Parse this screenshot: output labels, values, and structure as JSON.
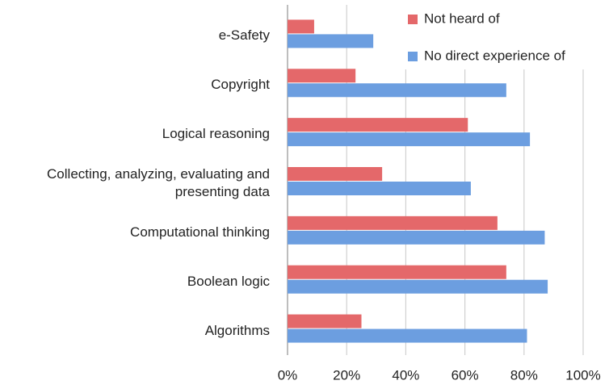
{
  "chart_data": {
    "type": "hbar",
    "categories": [
      "e-Safety",
      "Copyright",
      "Logical reasoning",
      "Collecting, analyzing, evaluating and presenting data",
      "Computational thinking",
      "Boolean logic",
      "Algorithms"
    ],
    "series": [
      {
        "name": "Not heard of",
        "color": "#e4686a",
        "values": [
          9,
          23,
          61,
          32,
          71,
          74,
          25
        ]
      },
      {
        "name": "No direct experience of",
        "color": "#6c9ee0",
        "values": [
          29,
          74,
          82,
          62,
          87,
          88,
          81
        ]
      }
    ],
    "xlim": [
      0,
      100
    ],
    "xticks": [
      {
        "value": 0,
        "label": "0%"
      },
      {
        "value": 20,
        "label": "20%"
      },
      {
        "value": 40,
        "label": "40%"
      },
      {
        "value": 60,
        "label": "60%"
      },
      {
        "value": 80,
        "label": "80%"
      },
      {
        "value": 100,
        "label": "100%"
      }
    ],
    "grid": true,
    "legend": "top-right"
  }
}
